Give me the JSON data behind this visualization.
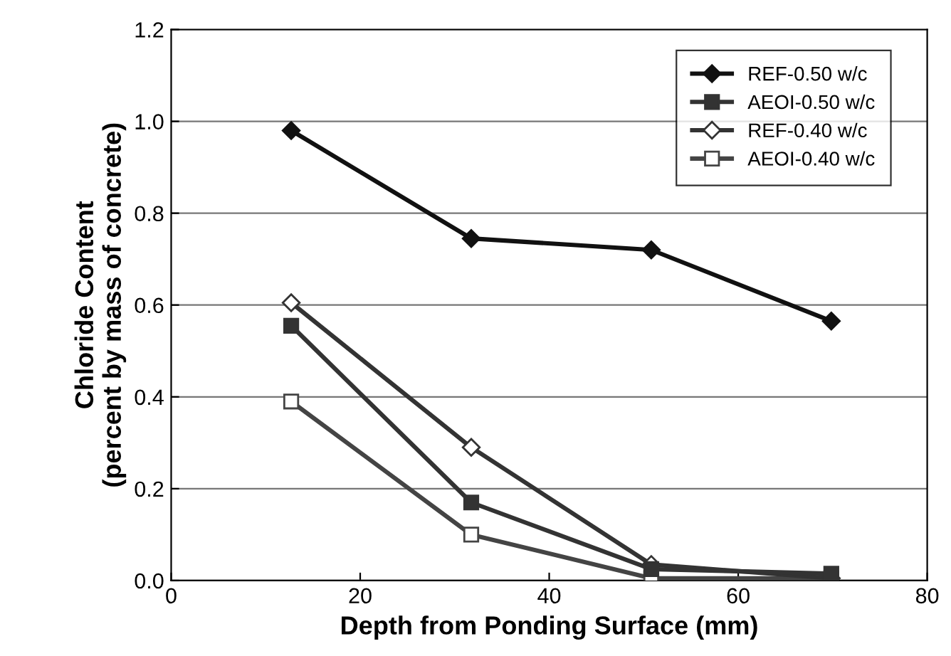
{
  "chart_data": {
    "type": "line",
    "xlabel": "Depth from Ponding Surface (mm)",
    "ylabel": "Chloride Content\n(percent by mass of concrete)",
    "xlim": [
      0,
      80
    ],
    "xticks": [
      0,
      20,
      40,
      60,
      80
    ],
    "ylim": [
      0,
      1.2
    ],
    "yticks": [
      {
        "value": 0,
        "label": "0.0"
      },
      {
        "value": 0.2,
        "label": "0.2"
      },
      {
        "value": 0.4,
        "label": "0.4"
      },
      {
        "value": 0.6,
        "label": "0.6"
      },
      {
        "value": 0.8,
        "label": "0.8"
      },
      {
        "value": 1.0,
        "label": "1.0"
      },
      {
        "value": 1.2,
        "label": "1.2"
      }
    ],
    "grid": "y",
    "legend": "top right",
    "line_style": "solid",
    "series": [
      {
        "name": "REF-0.50 w/c",
        "color": "#111111",
        "marker": "diamond",
        "x": [
          12.7,
          31.75,
          50.8,
          69.85
        ],
        "values": [
          0.98,
          0.745,
          0.72,
          0.565
        ]
      },
      {
        "name": "AEOI-0.50 w/c",
        "color": "#333333",
        "marker": "square",
        "x": [
          12.7,
          31.75,
          50.8,
          69.85
        ],
        "values": [
          0.555,
          0.17,
          0.025,
          0.015
        ]
      },
      {
        "name": "REF-0.40 w/c",
        "color": "#333333",
        "marker": "diamond-open",
        "x": [
          12.7,
          31.75,
          50.8,
          69.85
        ],
        "values": [
          0.605,
          0.29,
          0.035,
          0.005
        ]
      },
      {
        "name": "AEOI-0.40 w/c",
        "color": "#444444",
        "marker": "square-open",
        "x": [
          12.7,
          31.75,
          50.8,
          69.85
        ],
        "values": [
          0.39,
          0.1,
          0.005,
          0.005
        ]
      }
    ]
  }
}
